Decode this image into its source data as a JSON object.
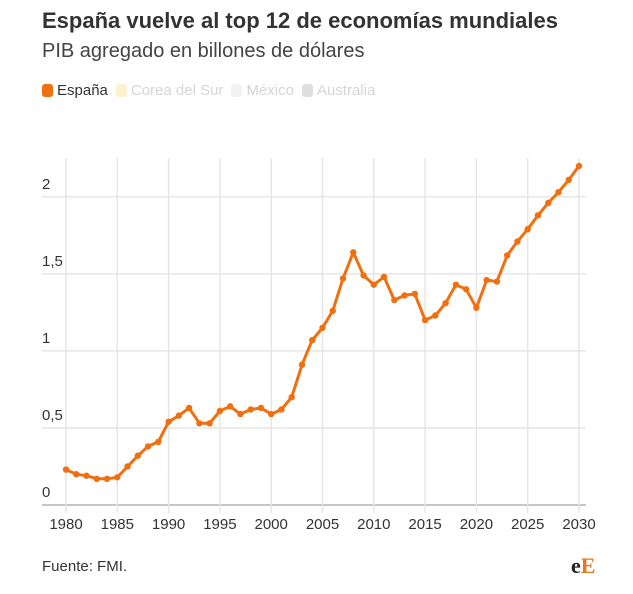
{
  "title": "España vuelve al top 12 de economías mundiales",
  "subtitle": "PIB agregado en billones de dólares",
  "legend": [
    {
      "label": "España",
      "color": "#f07010",
      "text_color": "#333333"
    },
    {
      "label": "Corea del Sur",
      "color": "#fdf2cf",
      "text_color": "#d6d6d6"
    },
    {
      "label": "México",
      "color": "#f2f2f2",
      "text_color": "#d6d6d6"
    },
    {
      "label": "Australia",
      "color": "#dde0e0",
      "text_color": "#d6d6d6"
    }
  ],
  "source": "Fuente: FMI.",
  "logo": {
    "part1": "e",
    "part2": "E"
  },
  "chart_data": {
    "type": "line",
    "xlim": [
      1980,
      2030
    ],
    "ylim": [
      0,
      2.2
    ],
    "grid": true,
    "legend_position": "top-left",
    "x_ticks": [
      1980,
      1985,
      1990,
      1995,
      2000,
      2005,
      2010,
      2015,
      2020,
      2025,
      2030
    ],
    "y_ticks": [
      {
        "value": 0,
        "label": "0"
      },
      {
        "value": 0.5,
        "label": "0,5"
      },
      {
        "value": 1,
        "label": "1"
      },
      {
        "value": 1.5,
        "label": "1,5"
      },
      {
        "value": 2,
        "label": "2"
      }
    ],
    "series": [
      {
        "name": "España",
        "color": "#f07010",
        "x": [
          1980,
          1981,
          1982,
          1983,
          1984,
          1985,
          1986,
          1987,
          1988,
          1989,
          1990,
          1991,
          1992,
          1993,
          1994,
          1995,
          1996,
          1997,
          1998,
          1999,
          2000,
          2001,
          2002,
          2003,
          2004,
          2005,
          2006,
          2007,
          2008,
          2009,
          2010,
          2011,
          2012,
          2013,
          2014,
          2015,
          2016,
          2017,
          2018,
          2019,
          2020,
          2021,
          2022,
          2023,
          2024,
          2025,
          2026,
          2027,
          2028,
          2029,
          2030
        ],
        "y": [
          0.23,
          0.2,
          0.19,
          0.17,
          0.17,
          0.18,
          0.25,
          0.32,
          0.38,
          0.41,
          0.54,
          0.58,
          0.63,
          0.53,
          0.53,
          0.61,
          0.64,
          0.59,
          0.62,
          0.63,
          0.59,
          0.62,
          0.7,
          0.91,
          1.07,
          1.15,
          1.26,
          1.47,
          1.64,
          1.49,
          1.43,
          1.48,
          1.33,
          1.36,
          1.37,
          1.2,
          1.23,
          1.31,
          1.43,
          1.4,
          1.28,
          1.46,
          1.45,
          1.62,
          1.71,
          1.79,
          1.88,
          1.96,
          2.03,
          2.11,
          2.2
        ]
      }
    ]
  }
}
